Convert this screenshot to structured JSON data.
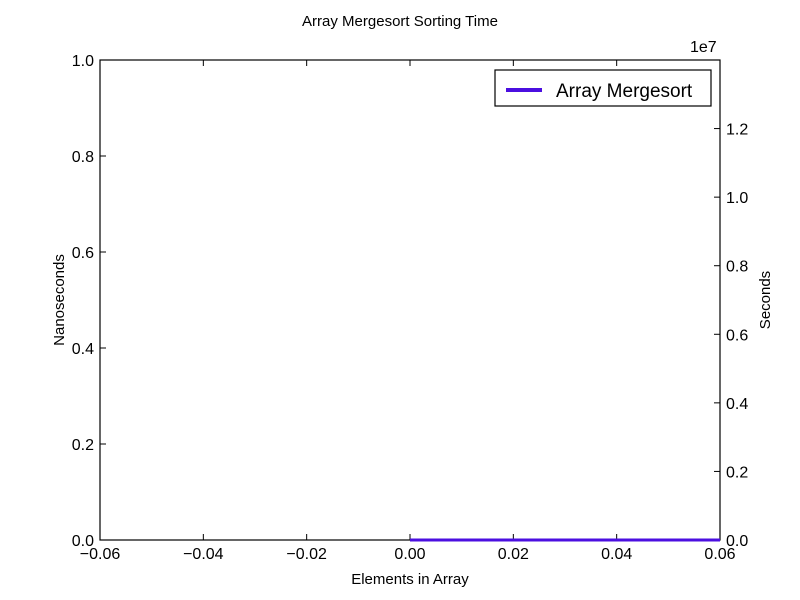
{
  "chart_data": {
    "type": "line",
    "title": "Array Mergesort Sorting Time",
    "xlabel": "Elements in Array",
    "ylabel_left": "Nanoseconds",
    "ylabel_right": "Seconds",
    "right_axis_offset_label": "1e7",
    "xlim": [
      -0.06,
      0.06
    ],
    "ylim_left": [
      0.0,
      1.0
    ],
    "ylim_right": [
      0.0,
      1.4
    ],
    "x_ticks": [
      -0.06,
      -0.04,
      -0.02,
      0.0,
      0.02,
      0.04,
      0.06
    ],
    "x_tick_labels": [
      "−0.06",
      "−0.04",
      "−0.02",
      "0.00",
      "0.02",
      "0.04",
      "0.06"
    ],
    "y_left_ticks": [
      0.0,
      0.2,
      0.4,
      0.6,
      0.8,
      1.0
    ],
    "y_left_tick_labels": [
      "0.0",
      "0.2",
      "0.4",
      "0.6",
      "0.8",
      "1.0"
    ],
    "y_right_ticks": [
      0.0,
      0.2,
      0.4,
      0.6,
      0.8,
      1.0,
      1.2
    ],
    "y_right_tick_labels": [
      "0.0",
      "0.2",
      "0.4",
      "0.6",
      "0.8",
      "1.0",
      "1.2"
    ],
    "grid": false,
    "legend_position": "top-right",
    "series": [
      {
        "name": "Array Mergesort",
        "color": "#4b0fe0",
        "x": [
          0.0,
          0.06
        ],
        "y": [
          0.0,
          0.0
        ]
      }
    ]
  }
}
